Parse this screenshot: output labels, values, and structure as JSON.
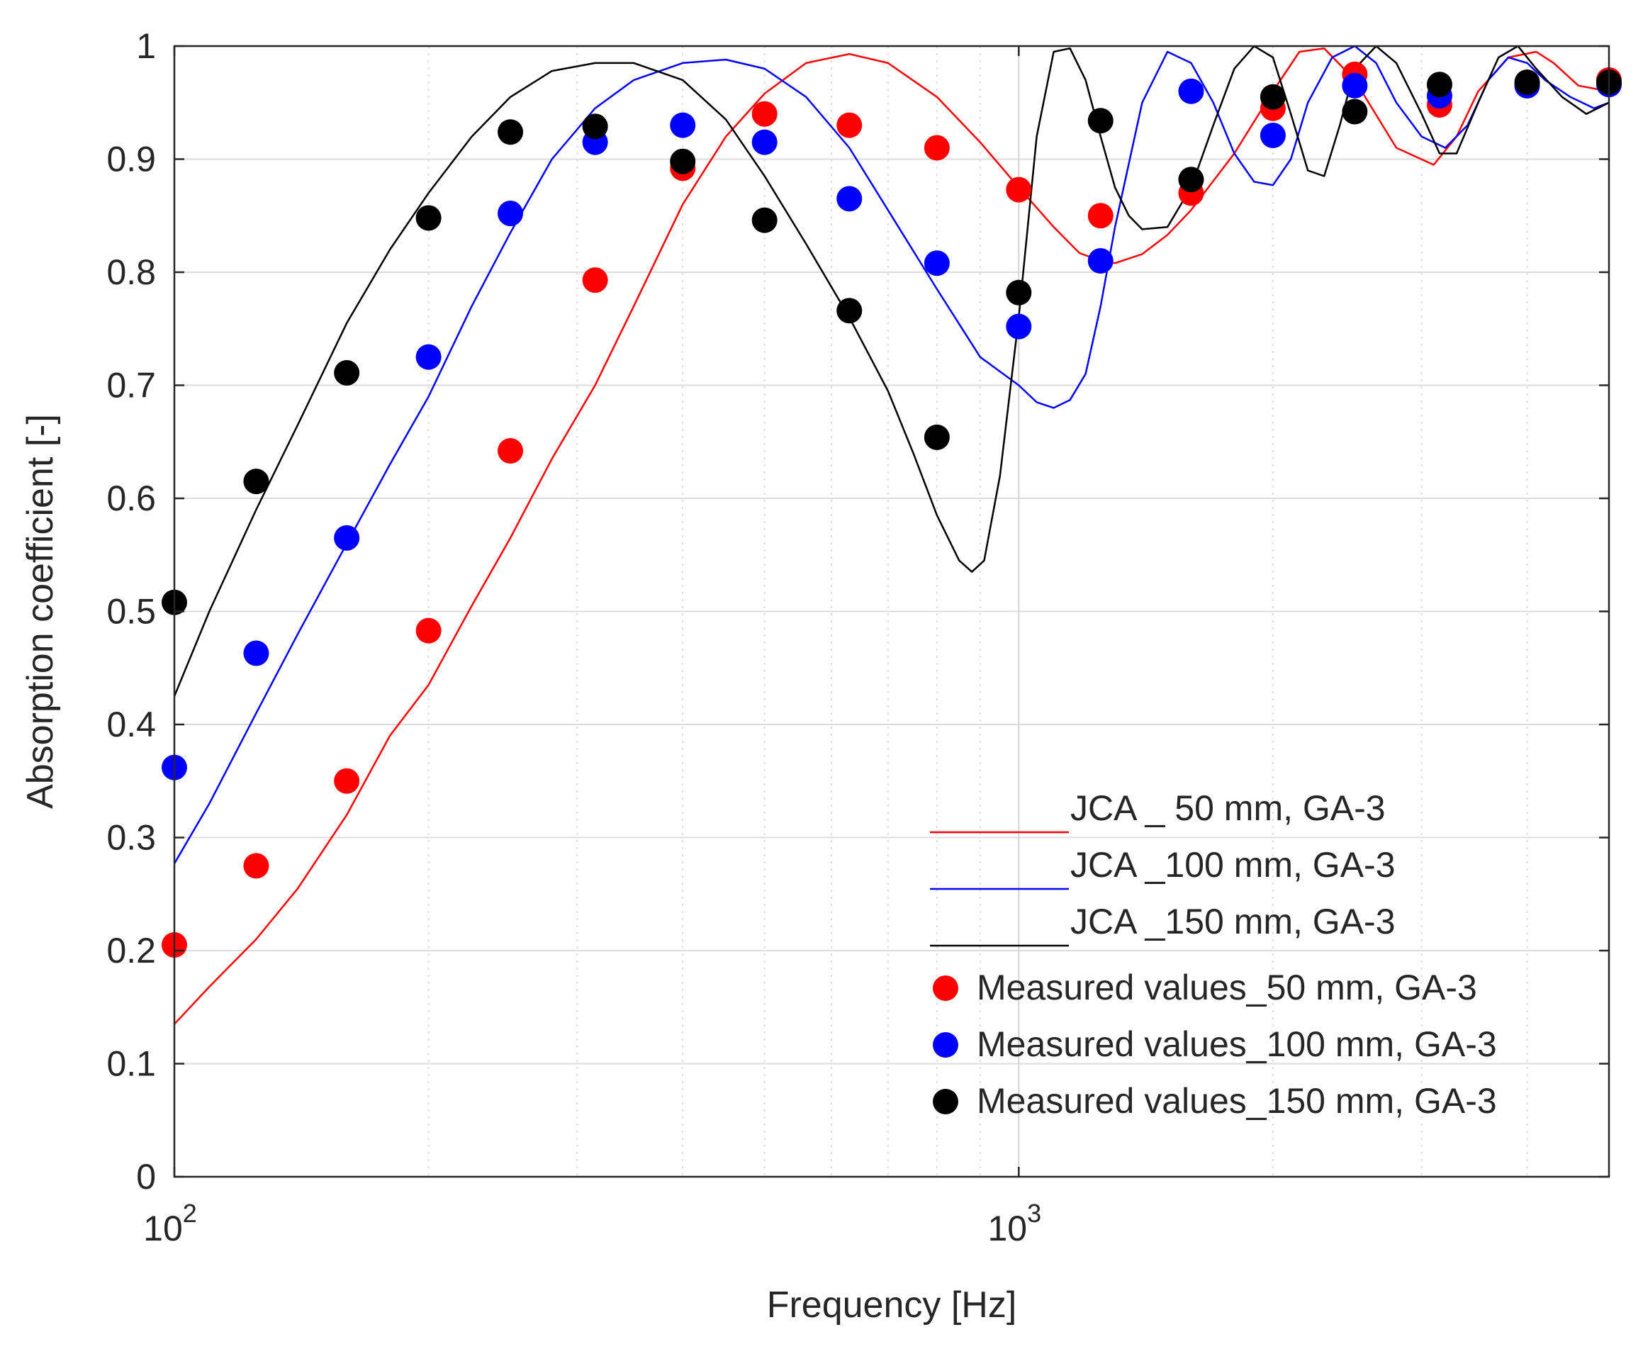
{
  "chart_data": {
    "type": "line",
    "xlabel": "Frequency [Hz]",
    "ylabel": "Absorption coefficient [-]",
    "xscale": "log",
    "xlim": [
      100,
      5000
    ],
    "ylim": [
      0,
      1
    ],
    "grid": true,
    "legend_position": "bottom-right",
    "x_ticks": [
      100,
      1000
    ],
    "x_tick_labels": [
      {
        "base": "10",
        "exp": "2"
      },
      {
        "base": "10",
        "exp": "3"
      }
    ],
    "y_ticks": [
      0,
      0.1,
      0.2,
      0.3,
      0.4,
      0.5,
      0.6,
      0.7,
      0.8,
      0.9,
      1
    ],
    "y_tick_labels": [
      "0",
      "0.1",
      "0.2",
      "0.3",
      "0.4",
      "0.5",
      "0.6",
      "0.7",
      "0.8",
      "0.9",
      "1"
    ],
    "lines": [
      {
        "name": "JCA _ 50 mm, GA-3",
        "color": "#ff0000",
        "x": [
          100,
          110,
          125,
          140,
          160,
          180,
          200,
          225,
          250,
          280,
          315,
          350,
          400,
          450,
          500,
          560,
          630,
          700,
          800,
          900,
          1000,
          1100,
          1180,
          1250,
          1300,
          1400,
          1500,
          1600,
          1800,
          2000,
          2150,
          2300,
          2500,
          2800,
          3100,
          3300,
          3500,
          3800,
          4100,
          4300,
          4600,
          5000
        ],
        "y": [
          0.135,
          0.168,
          0.21,
          0.255,
          0.32,
          0.39,
          0.435,
          0.505,
          0.565,
          0.635,
          0.7,
          0.77,
          0.86,
          0.92,
          0.958,
          0.985,
          0.993,
          0.985,
          0.955,
          0.915,
          0.875,
          0.84,
          0.817,
          0.81,
          0.808,
          0.816,
          0.833,
          0.855,
          0.905,
          0.96,
          0.995,
          0.998,
          0.97,
          0.91,
          0.895,
          0.92,
          0.96,
          0.99,
          0.995,
          0.985,
          0.965,
          0.96
        ]
      },
      {
        "name": "JCA _100 mm, GA-3",
        "color": "#0000ff",
        "x": [
          100,
          110,
          125,
          140,
          160,
          180,
          200,
          225,
          250,
          280,
          315,
          350,
          400,
          450,
          500,
          560,
          630,
          700,
          800,
          900,
          1000,
          1050,
          1100,
          1150,
          1200,
          1250,
          1300,
          1400,
          1500,
          1600,
          1700,
          1800,
          1900,
          2000,
          2100,
          2200,
          2350,
          2500,
          2650,
          2800,
          3000,
          3200,
          3400,
          3600,
          3800,
          4000,
          4200,
          4500,
          4800,
          5000
        ],
        "y": [
          0.277,
          0.33,
          0.41,
          0.48,
          0.56,
          0.63,
          0.69,
          0.77,
          0.835,
          0.9,
          0.945,
          0.97,
          0.985,
          0.988,
          0.98,
          0.955,
          0.91,
          0.855,
          0.785,
          0.725,
          0.7,
          0.685,
          0.68,
          0.687,
          0.71,
          0.77,
          0.84,
          0.95,
          0.995,
          0.985,
          0.95,
          0.905,
          0.88,
          0.877,
          0.9,
          0.95,
          0.99,
          1.0,
          0.985,
          0.95,
          0.92,
          0.91,
          0.93,
          0.97,
          0.99,
          0.985,
          0.97,
          0.955,
          0.945,
          0.95
        ]
      },
      {
        "name": "JCA _150 mm, GA-3",
        "color": "#000000",
        "x": [
          100,
          110,
          125,
          140,
          160,
          180,
          200,
          225,
          250,
          280,
          315,
          350,
          400,
          450,
          500,
          560,
          630,
          700,
          750,
          800,
          850,
          880,
          910,
          950,
          1000,
          1050,
          1100,
          1150,
          1200,
          1250,
          1300,
          1350,
          1400,
          1500,
          1600,
          1700,
          1800,
          1900,
          2000,
          2100,
          2200,
          2300,
          2400,
          2500,
          2650,
          2800,
          3000,
          3150,
          3300,
          3500,
          3700,
          3900,
          4100,
          4400,
          4700,
          5000
        ],
        "y": [
          0.425,
          0.5,
          0.59,
          0.665,
          0.755,
          0.82,
          0.87,
          0.92,
          0.955,
          0.978,
          0.985,
          0.985,
          0.97,
          0.935,
          0.885,
          0.825,
          0.76,
          0.695,
          0.64,
          0.585,
          0.545,
          0.535,
          0.545,
          0.62,
          0.76,
          0.92,
          0.995,
          0.998,
          0.97,
          0.92,
          0.875,
          0.85,
          0.838,
          0.84,
          0.875,
          0.93,
          0.98,
          1.0,
          0.99,
          0.94,
          0.89,
          0.885,
          0.93,
          0.98,
          1.0,
          0.985,
          0.94,
          0.905,
          0.905,
          0.95,
          0.99,
          1.0,
          0.98,
          0.955,
          0.94,
          0.95
        ]
      }
    ],
    "scatter": [
      {
        "name": "Measured values_50 mm, GA-3",
        "color": "#ff0000",
        "x": [
          100,
          125,
          160,
          200,
          250,
          315,
          400,
          500,
          630,
          800,
          1000,
          1250,
          1600,
          2000,
          2500,
          3150,
          4000,
          5000
        ],
        "y": [
          0.205,
          0.275,
          0.35,
          0.483,
          0.642,
          0.793,
          0.892,
          0.94,
          0.93,
          0.91,
          0.873,
          0.85,
          0.87,
          0.945,
          0.975,
          0.948,
          0.965,
          0.97
        ]
      },
      {
        "name": "Measured values_100 mm, GA-3",
        "color": "#0000ff",
        "x": [
          100,
          125,
          160,
          200,
          250,
          315,
          400,
          500,
          630,
          800,
          1000,
          1250,
          1600,
          2000,
          2500,
          3150,
          4000,
          5000
        ],
        "y": [
          0.362,
          0.463,
          0.565,
          0.725,
          0.852,
          0.915,
          0.93,
          0.915,
          0.865,
          0.808,
          0.752,
          0.81,
          0.96,
          0.921,
          0.965,
          0.956,
          0.965,
          0.966
        ]
      },
      {
        "name": "Measured values_150 mm, GA-3",
        "color": "#000000",
        "x": [
          100,
          125,
          160,
          200,
          250,
          315,
          400,
          500,
          630,
          800,
          1000,
          1250,
          1600,
          2000,
          2500,
          3150,
          4000,
          5000
        ],
        "y": [
          0.508,
          0.615,
          0.711,
          0.848,
          0.924,
          0.929,
          0.898,
          0.846,
          0.766,
          0.654,
          0.782,
          0.934,
          0.882,
          0.955,
          0.942,
          0.966,
          0.968,
          0.968
        ]
      }
    ]
  }
}
